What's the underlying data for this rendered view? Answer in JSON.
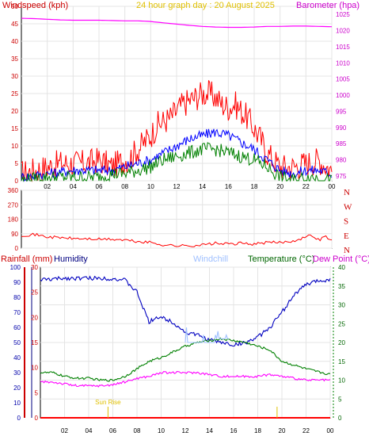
{
  "chart_data": [
    {
      "type": "line",
      "panel": "wind-baro",
      "title": "24 hour graph day : 20 August 2025",
      "left_label": "Windspeed (kph)",
      "right_label": "Barometer (hpa)",
      "x_ticks": [
        "02",
        "04",
        "06",
        "08",
        "10",
        "12",
        "14",
        "16",
        "18",
        "20",
        "22",
        "00"
      ],
      "y_left_ticks": [
        "0",
        "5",
        "10",
        "15",
        "20",
        "25",
        "30",
        "35",
        "40",
        "45",
        "50"
      ],
      "y_left_lim": [
        0,
        50
      ],
      "y_right_ticks": [
        "975",
        "980",
        "985",
        "990",
        "995",
        "1000",
        "1005",
        "1010",
        "1015",
        "1020",
        "1025"
      ],
      "y_right_lim": [
        973.5,
        1027.5
      ],
      "x_lim": [
        0,
        24
      ],
      "series": [
        {
          "key": "gust",
          "color": "#ff0000",
          "axis": "left",
          "x": [
            0,
            1,
            2,
            3,
            4,
            5,
            6,
            7,
            8,
            8.5,
            9,
            9.5,
            10,
            10.5,
            11,
            11.5,
            12,
            12.5,
            13,
            13.5,
            14,
            14.5,
            15,
            15.5,
            16,
            16.5,
            17,
            17.5,
            18,
            18.5,
            19,
            19.5,
            20,
            21,
            22,
            23,
            24
          ],
          "values": [
            2,
            3,
            4,
            5,
            5,
            5,
            6,
            4,
            6,
            7,
            9,
            11,
            13,
            16,
            17,
            18,
            20,
            22,
            23,
            24,
            25,
            25,
            24,
            22,
            21,
            22,
            20,
            18,
            15,
            12,
            8,
            6,
            4,
            4,
            5,
            6,
            3
          ]
        },
        {
          "key": "wind",
          "color": "#0000ff",
          "axis": "left",
          "x": [
            0,
            2,
            4,
            6,
            7,
            8,
            9,
            10,
            11,
            12,
            13,
            14,
            15,
            16,
            17,
            18,
            19,
            20,
            21,
            22,
            23,
            24
          ],
          "values": [
            1,
            2,
            3,
            3,
            3,
            4,
            5,
            6,
            8,
            10,
            12,
            13,
            14,
            13,
            11,
            9,
            6,
            3,
            2,
            3,
            3,
            2
          ]
        },
        {
          "key": "avg",
          "color": "#008000",
          "axis": "left",
          "x": [
            0,
            2,
            4,
            6,
            7,
            8,
            9,
            10,
            11,
            12,
            13,
            14,
            15,
            16,
            17,
            18,
            19,
            20,
            21,
            22,
            23,
            24
          ],
          "values": [
            0,
            1,
            1,
            1,
            2,
            2,
            3,
            4,
            6,
            7,
            8,
            9,
            9,
            8,
            7,
            6,
            4,
            1,
            0,
            1,
            1,
            0
          ]
        },
        {
          "key": "baro",
          "color": "#ff00ff",
          "axis": "right",
          "x": [
            0,
            1,
            2,
            3,
            4,
            5,
            6,
            7,
            8,
            9,
            10,
            11,
            12,
            13,
            14,
            15,
            16,
            17,
            18,
            19,
            20,
            21,
            22,
            23,
            24
          ],
          "values": [
            1023.8,
            1023.7,
            1023.5,
            1023.3,
            1023.2,
            1023.2,
            1023.2,
            1023.1,
            1023,
            1023,
            1022.8,
            1022.4,
            1022,
            1021.6,
            1021.3,
            1021.1,
            1021,
            1021,
            1021.1,
            1021.3,
            1021.3,
            1021.4,
            1021.4,
            1021.3,
            1021.2
          ]
        }
      ]
    },
    {
      "type": "line",
      "panel": "wind-direction",
      "x_lim": [
        0,
        24
      ],
      "y_ticks": [
        "0",
        "90",
        "180",
        "270",
        "360"
      ],
      "y_lim": [
        0,
        360
      ],
      "compass_labels": [
        "N",
        "W",
        "S",
        "E",
        "N"
      ],
      "series": [
        {
          "key": "direction",
          "color": "#ff0000",
          "x": [
            0,
            1,
            2,
            3,
            4,
            5,
            6,
            7,
            8,
            9,
            10,
            11,
            12,
            13,
            14,
            15,
            16,
            17,
            18,
            19,
            20,
            21,
            22,
            22.5,
            23,
            23.5,
            24
          ],
          "values": [
            80,
            85,
            70,
            65,
            60,
            58,
            55,
            55,
            50,
            40,
            35,
            20,
            15,
            15,
            20,
            30,
            25,
            30,
            25,
            35,
            35,
            45,
            70,
            80,
            50,
            75,
            45
          ]
        }
      ]
    },
    {
      "type": "line",
      "panel": "temp-humidity",
      "labels": {
        "rainfall": "Rainfall (mm)",
        "humidity": "Humidity",
        "windchill": "Windchill",
        "temperature": "Temperature (°C)",
        "dewpoint": "Dew Point (°C)"
      },
      "annotations": {
        "sunrise": "Sun Rise",
        "sunrise_x": 5.6,
        "sunset_x": 19.6
      },
      "x_ticks": [
        "02",
        "04",
        "06",
        "08",
        "10",
        "12",
        "14",
        "16",
        "18",
        "20",
        "22",
        "00"
      ],
      "x_lim": [
        0,
        24
      ],
      "rain_ticks": [
        "0",
        "10",
        "20",
        "30",
        "40",
        "50",
        "60",
        "70",
        "80",
        "90",
        "100"
      ],
      "humidity_ticks": [
        "0",
        "5",
        "10",
        "15",
        "20",
        "25",
        "30"
      ],
      "humidity_lim": [
        0,
        30
      ],
      "temp_ticks": [
        "0",
        "5",
        "10",
        "15",
        "20",
        "25",
        "30",
        "35",
        "40"
      ],
      "temp_lim": [
        0,
        40
      ],
      "series": [
        {
          "key": "humidity",
          "color": "#0000c0",
          "axis": "humidity",
          "x": [
            0,
            1,
            2,
            3,
            4,
            5,
            6,
            7,
            8,
            8.5,
            9,
            9.5,
            10,
            11,
            12,
            13,
            14,
            15,
            16,
            17,
            18,
            19,
            20,
            21,
            22,
            23,
            24
          ],
          "values": [
            27.5,
            27.6,
            27.8,
            27.8,
            27.8,
            27.8,
            27.7,
            27.4,
            25,
            22,
            19,
            20,
            20,
            19,
            17,
            16.5,
            15.5,
            15,
            14.5,
            15,
            16,
            18,
            21,
            24.5,
            26.5,
            27.3,
            27.5
          ]
        },
        {
          "key": "temperature",
          "color": "#008000",
          "axis": "temp",
          "x": [
            0,
            1,
            2,
            3,
            4,
            5,
            6,
            7,
            8,
            9,
            10,
            11,
            12,
            13,
            14,
            15,
            16,
            17,
            18,
            19,
            20,
            21,
            22,
            23,
            24
          ],
          "values": [
            12,
            12,
            11,
            10.5,
            10.5,
            10,
            10,
            11,
            13,
            15,
            16,
            17.5,
            19,
            20,
            20.5,
            21,
            20.5,
            20,
            19,
            18,
            15,
            14,
            13,
            12.2,
            11.5
          ]
        },
        {
          "key": "dewpoint",
          "color": "#ff00ff",
          "axis": "temp",
          "x": [
            0,
            1,
            2,
            3,
            4,
            5,
            6,
            7,
            8,
            9,
            10,
            11,
            12,
            13,
            14,
            15,
            16,
            17,
            18,
            19,
            20,
            21,
            22,
            23,
            24
          ],
          "values": [
            9.5,
            9.5,
            9,
            8.5,
            8.5,
            8.5,
            8.8,
            9.5,
            10.5,
            11,
            12,
            12,
            12,
            12,
            11.5,
            11,
            11,
            11,
            11,
            11.5,
            11,
            10.5,
            10,
            10,
            10
          ]
        },
        {
          "key": "windchill",
          "color": "#a0c0ff",
          "axis": "temp",
          "x": [
            12,
            12.1,
            12.2,
            12.3,
            13.4,
            13.5,
            13.6,
            13.7,
            14.4,
            14.5,
            14.6,
            14.7,
            14.8,
            15.3,
            15.4,
            15.5,
            15.6
          ],
          "values": [
            20,
            24,
            20,
            20,
            20,
            22,
            20,
            20,
            20,
            22,
            21,
            23,
            21,
            21,
            22,
            21,
            21
          ]
        },
        {
          "key": "rainfall",
          "color": "#ff0000",
          "axis": "rain",
          "x": [
            0,
            24
          ],
          "values": [
            0,
            0
          ]
        }
      ]
    }
  ]
}
